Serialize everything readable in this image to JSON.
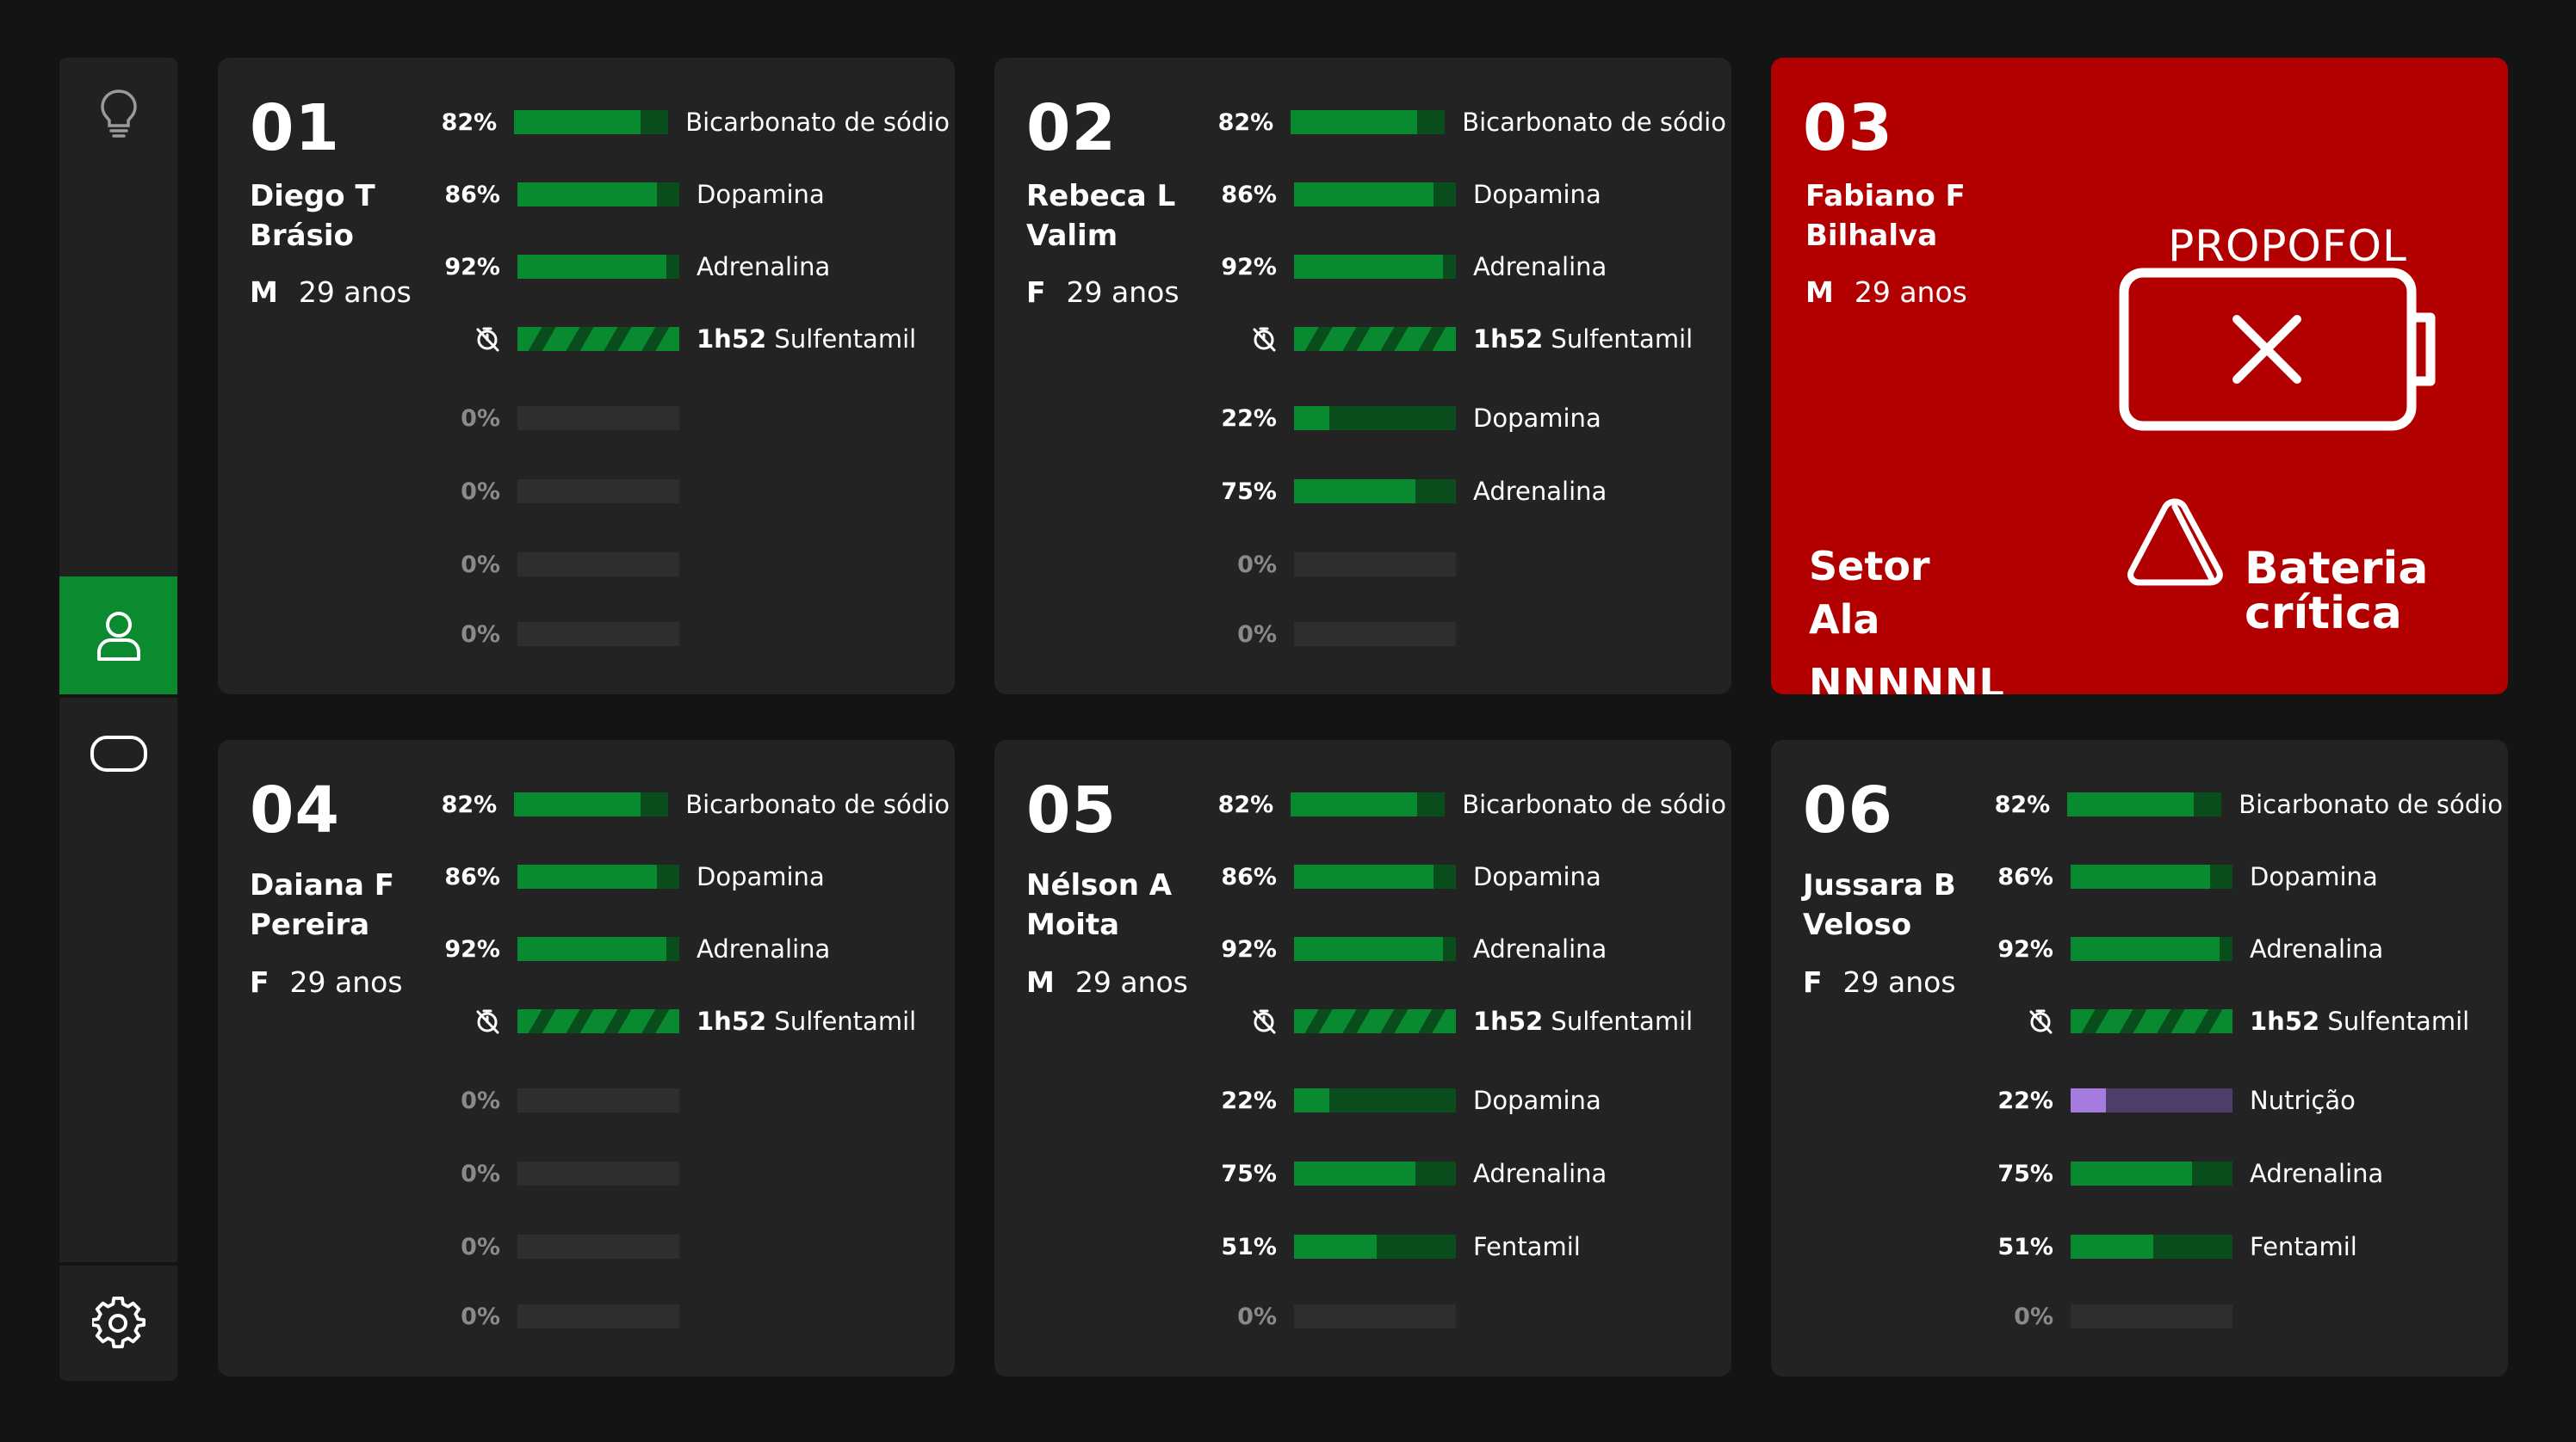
{
  "colors": {
    "background": "#141414",
    "card": "#232323",
    "alert_card": "#b20000",
    "accent_green": "#0a8a30",
    "nutrition_purple": "#a57be0"
  },
  "sidebar": {
    "items": [
      {
        "icon": "lightbulb-icon",
        "active": false
      },
      {
        "icon": "user-icon",
        "active": true
      },
      {
        "icon": "rounded-rectangle-icon",
        "active": false
      },
      {
        "icon": "gear-icon",
        "active": false
      }
    ]
  },
  "cards": [
    {
      "number": "01",
      "name": "Diego T Brásio",
      "name_line1": "Diego T",
      "name_line2": "Brásio",
      "sex": "M",
      "age": "29 anos",
      "rows": [
        {
          "pct": "82%",
          "value": 0.82,
          "label": "Bicarbonato de sódio"
        },
        {
          "pct": "86%",
          "value": 0.86,
          "label": "Dopamina"
        },
        {
          "pct": "92%",
          "value": 0.92,
          "label": "Adrenalina"
        },
        {
          "timer": true,
          "time": "1h52",
          "label": "Sulfentamil"
        },
        {
          "pct": "0%",
          "value": 0
        },
        {
          "pct": "0%",
          "value": 0
        },
        {
          "pct": "0%",
          "value": 0
        },
        {
          "pct": "0%",
          "value": 0
        }
      ]
    },
    {
      "number": "02",
      "name": "Rebeca L Valim",
      "name_line1": "Rebeca L",
      "name_line2": "Valim",
      "sex": "F",
      "age": "29 anos",
      "rows": [
        {
          "pct": "82%",
          "value": 0.82,
          "label": "Bicarbonato de sódio"
        },
        {
          "pct": "86%",
          "value": 0.86,
          "label": "Dopamina"
        },
        {
          "pct": "92%",
          "value": 0.92,
          "label": "Adrenalina"
        },
        {
          "timer": true,
          "time": "1h52",
          "label": "Sulfentamil"
        },
        {
          "pct": "22%",
          "value": 0.22,
          "label": "Dopamina"
        },
        {
          "pct": "75%",
          "value": 0.75,
          "label": "Adrenalina"
        },
        {
          "pct": "0%",
          "value": 0
        },
        {
          "pct": "0%",
          "value": 0
        }
      ]
    },
    {
      "number": "03",
      "name": "Fabiano F Bilhalva",
      "name_line1": "Fabiano F",
      "name_line2": "Bilhalva",
      "sex": "M",
      "age": "29 anos",
      "alert": {
        "drug": "PROPOFOL",
        "sector_label_1": "Setor",
        "sector_label_2": "Ala",
        "sector_code": "NNNNNL",
        "message_line1": "Bateria",
        "message_line2": "crítica",
        "icon": "battery-x-icon",
        "warning_icon": "warning-triangle-icon"
      }
    },
    {
      "number": "04",
      "name": "Daiana F Pereira",
      "name_line1": "Daiana F",
      "name_line2": "Pereira",
      "sex": "F",
      "age": "29 anos",
      "rows": [
        {
          "pct": "82%",
          "value": 0.82,
          "label": "Bicarbonato de sódio"
        },
        {
          "pct": "86%",
          "value": 0.86,
          "label": "Dopamina"
        },
        {
          "pct": "92%",
          "value": 0.92,
          "label": "Adrenalina"
        },
        {
          "timer": true,
          "time": "1h52",
          "label": "Sulfentamil"
        },
        {
          "pct": "0%",
          "value": 0
        },
        {
          "pct": "0%",
          "value": 0
        },
        {
          "pct": "0%",
          "value": 0
        },
        {
          "pct": "0%",
          "value": 0
        }
      ]
    },
    {
      "number": "05",
      "name": "Nélson A Moita",
      "name_line1": "Nélson A",
      "name_line2": "Moita",
      "sex": "M",
      "age": "29 anos",
      "rows": [
        {
          "pct": "82%",
          "value": 0.82,
          "label": "Bicarbonato de sódio"
        },
        {
          "pct": "86%",
          "value": 0.86,
          "label": "Dopamina"
        },
        {
          "pct": "92%",
          "value": 0.92,
          "label": "Adrenalina"
        },
        {
          "timer": true,
          "time": "1h52",
          "label": "Sulfentamil"
        },
        {
          "pct": "22%",
          "value": 0.22,
          "label": "Dopamina"
        },
        {
          "pct": "75%",
          "value": 0.75,
          "label": "Adrenalina"
        },
        {
          "pct": "51%",
          "value": 0.51,
          "label": "Fentamil"
        },
        {
          "pct": "0%",
          "value": 0
        }
      ]
    },
    {
      "number": "06",
      "name": "Jussara B Veloso",
      "name_line1": "Jussara B",
      "name_line2": "Veloso",
      "sex": "F",
      "age": "29 anos",
      "rows": [
        {
          "pct": "82%",
          "value": 0.82,
          "label": "Bicarbonato de sódio"
        },
        {
          "pct": "86%",
          "value": 0.86,
          "label": "Dopamina"
        },
        {
          "pct": "92%",
          "value": 0.92,
          "label": "Adrenalina"
        },
        {
          "timer": true,
          "time": "1h52",
          "label": "Sulfentamil"
        },
        {
          "pct": "22%",
          "value": 0.22,
          "label": "Nutrição",
          "color": "purple"
        },
        {
          "pct": "75%",
          "value": 0.75,
          "label": "Adrenalina"
        },
        {
          "pct": "51%",
          "value": 0.51,
          "label": "Fentamil"
        },
        {
          "pct": "0%",
          "value": 0
        }
      ]
    }
  ]
}
